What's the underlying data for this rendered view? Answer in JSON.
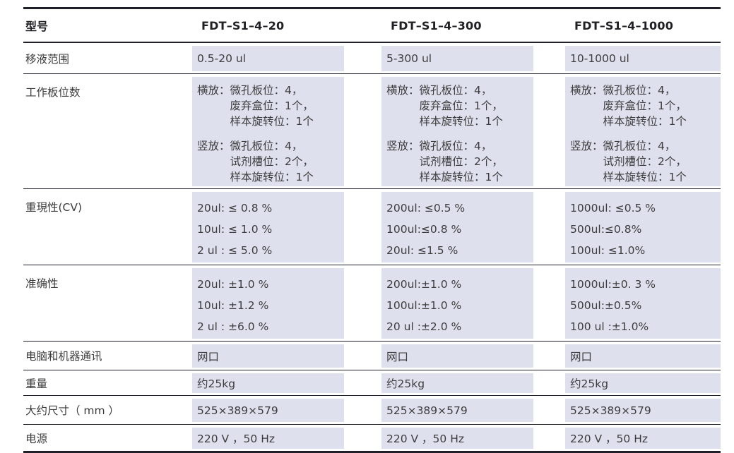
{
  "colors": {
    "band": "#dee0ee",
    "line": "#20202a",
    "text": "#3d3d3d"
  },
  "table": {
    "header": {
      "label": "型号",
      "models": [
        "FDT–S1–4–20",
        "FDT–S1–4–300",
        "FDT–S1–4–1000"
      ]
    },
    "rows": [
      {
        "label": "移液范围",
        "values": [
          "0.5-20 ul",
          "5-300 ul",
          "10-1000 ul"
        ]
      },
      {
        "label": "工作板位数",
        "values": [
          {
            "horizontal": [
              "横放：微孔板位：4，",
              "　　　废弃盒位：1个，",
              "　　　样本旋转位：1个"
            ],
            "vertical": [
              "竖放：微孔板位：4，",
              "　　　试剂槽位：2个，",
              "　　　样本旋转位：1个"
            ]
          },
          {
            "horizontal": [
              "横放：微孔板位：4，",
              "　　　废弃盒位：1个，",
              "　　　样本旋转位：1个"
            ],
            "vertical": [
              "竖放：微孔板位：4，",
              "　　　试剂槽位：2个，",
              "　　　样本旋转位：1个"
            ]
          },
          {
            "horizontal": [
              "横放：微孔板位：4，",
              "　　　废弃盒位：1个，",
              "　　　样本旋转位：1个"
            ],
            "vertical": [
              "竖放：微孔板位：4，",
              "　　　试剂槽位：2个，",
              "　　　样本旋转位：1个"
            ]
          }
        ]
      },
      {
        "label": "重現性(CV)",
        "values": [
          [
            "20ul: ≤ 0.8 %",
            "10ul: ≤ 1.0 %",
            "2 ul : ≤ 5.0 %"
          ],
          [
            "200ul: ≤0.5 %",
            "100ul:≤0.8 %",
            "20ul: ≤1.5 %"
          ],
          [
            "1000ul: ≤0.5 %",
            "500ul:≤0.8%",
            "100ul: ≤1.0%"
          ]
        ]
      },
      {
        "label": "准确性",
        "values": [
          [
            "20ul: ±1.0 %",
            "10ul: ±1.2 %",
            "2 ul : ±6.0 %"
          ],
          [
            "200ul:±1.0 %",
            "100ul:±1.0 %",
            "20 ul :±2.0 %"
          ],
          [
            "1000ul:±0. 3 %",
            "500ul:±0.5%",
            "100 ul :±1.0%"
          ]
        ]
      },
      {
        "label": "电脑和机器通讯",
        "values": [
          "网口",
          "网口",
          "网口"
        ]
      },
      {
        "label": "重量",
        "values": [
          "约25kg",
          "约25kg",
          "约25kg"
        ]
      },
      {
        "label": "大约尺寸（ mm ）",
        "values": [
          "525×389×579",
          "525×389×579",
          "525×389×579"
        ]
      },
      {
        "label": "电源",
        "values": [
          "220 V ，50 Hz",
          "220 V ，50 Hz",
          "220 V ，50 Hz"
        ]
      }
    ]
  }
}
